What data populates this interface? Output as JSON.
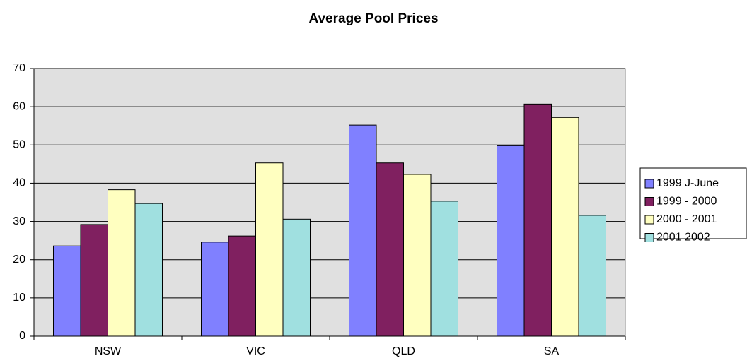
{
  "chart_data": {
    "type": "bar",
    "title": "Average Pool Prices",
    "categories": [
      "NSW",
      "VIC",
      "QLD",
      "SA"
    ],
    "series": [
      {
        "name": "1999 J-June",
        "color": "#8080ff",
        "values": [
          23.6,
          24.6,
          55.2,
          49.8
        ]
      },
      {
        "name": "1999 - 2000",
        "color": "#802060",
        "values": [
          29.2,
          26.2,
          45.3,
          60.7
        ]
      },
      {
        "name": "2000 - 2001",
        "color": "#ffffc0",
        "values": [
          38.3,
          45.3,
          42.3,
          57.2
        ]
      },
      {
        "name": "2001 2002",
        "color": "#a0e0e0",
        "values": [
          34.7,
          30.6,
          35.3,
          31.6
        ]
      }
    ],
    "ylim": [
      0,
      70
    ],
    "yticks": [
      0,
      10,
      20,
      30,
      40,
      50,
      60,
      70
    ],
    "grid": true,
    "legend": "right"
  }
}
